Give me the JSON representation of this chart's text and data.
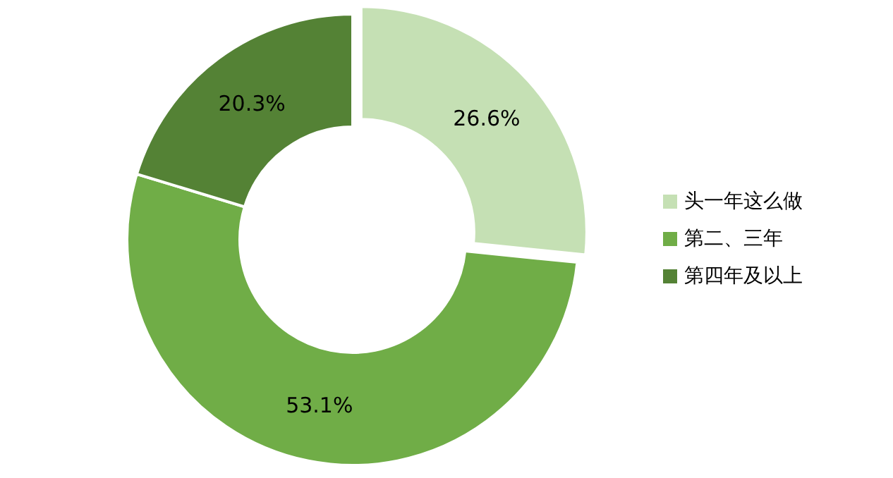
{
  "chart_data": {
    "type": "donut",
    "categories": [
      "头一年这么做",
      "第二、三年",
      "第四年及以上"
    ],
    "values": [
      26.6,
      53.1,
      20.3
    ],
    "colors": [
      "#c5e0b4",
      "#70ad47",
      "#548235"
    ],
    "value_labels": [
      "26.6%",
      "53.1%",
      "20.3%"
    ],
    "legend": "right"
  }
}
